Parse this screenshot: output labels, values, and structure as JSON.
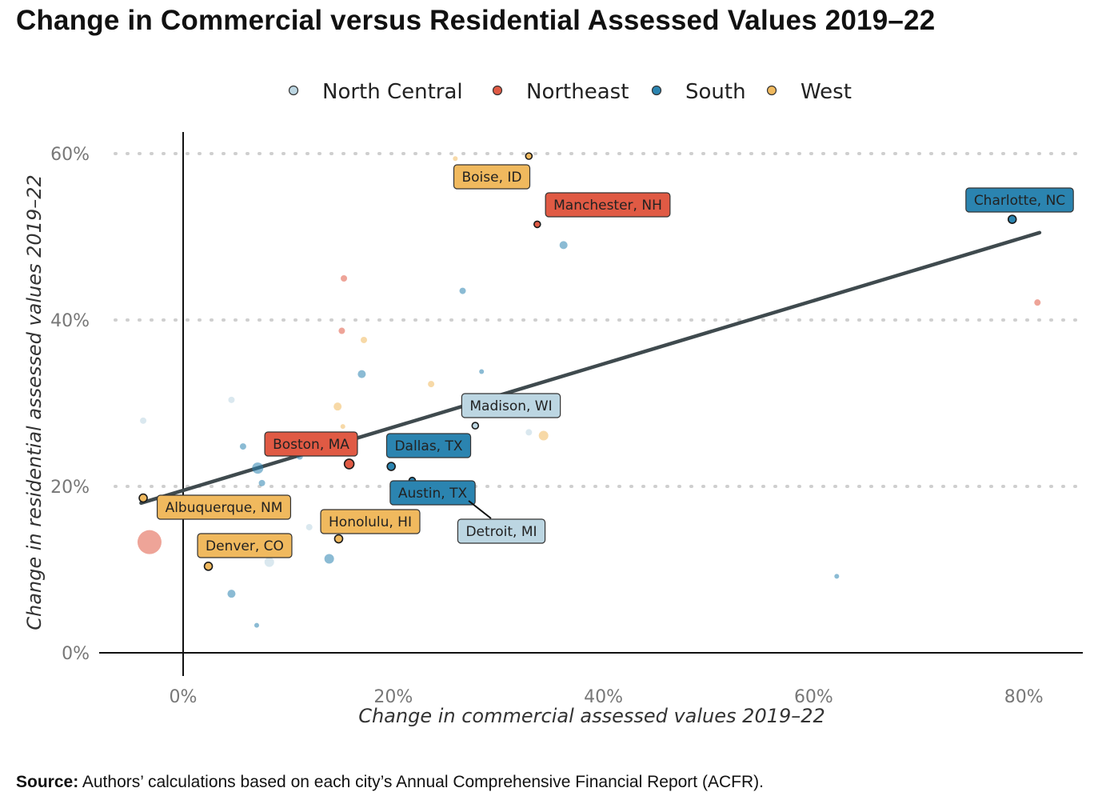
{
  "title": "Change in Commercial versus Residential Assessed Values 2019–22",
  "source": {
    "label": "Source:",
    "text": " Authors’ calculations based on each city’s Annual Comprehensive Financial Report (ACFR)."
  },
  "chart_data": {
    "type": "scatter",
    "xlabel": "Change in commercial assessed values 2019–22",
    "ylabel": "Change in residential assessed values 2019–22",
    "xlim": [
      -0.1,
      0.85
    ],
    "ylim": [
      -0.03,
      0.63
    ],
    "x_ticks": [
      {
        "value": 0.0,
        "label": "0%"
      },
      {
        "value": 0.2,
        "label": "20%"
      },
      {
        "value": 0.4,
        "label": "40%"
      },
      {
        "value": 0.6,
        "label": "60%"
      },
      {
        "value": 0.8,
        "label": "80%"
      }
    ],
    "y_ticks": [
      {
        "value": 0.0,
        "label": "0%"
      },
      {
        "value": 0.2,
        "label": "20%"
      },
      {
        "value": 0.4,
        "label": "40%"
      },
      {
        "value": 0.6,
        "label": "60%"
      }
    ],
    "grid": "horizontal dotted",
    "legend_position": "top",
    "series": [
      {
        "name": "North Central",
        "color": "#bcd6e2"
      },
      {
        "name": "Northeast",
        "color": "#e05a44"
      },
      {
        "name": "South",
        "color": "#2b84b0"
      },
      {
        "name": "West",
        "color": "#f0b95e"
      }
    ],
    "trend_line": {
      "x": [
        -0.04,
        0.815
      ],
      "y": [
        0.18,
        0.505
      ],
      "color": "#3f4a4e"
    },
    "points": [
      {
        "region": "West",
        "x": -0.038,
        "y": 0.186,
        "label": "Albuquerque, NM",
        "size": 5
      },
      {
        "region": "West",
        "x": 0.024,
        "y": 0.104,
        "label": "Denver, CO",
        "size": 5
      },
      {
        "region": "West",
        "x": 0.148,
        "y": 0.137,
        "label": "Honolulu, HI",
        "size": 5
      },
      {
        "region": "West",
        "x": 0.329,
        "y": 0.597,
        "label": "Boise, ID",
        "size": 4
      },
      {
        "region": "Northeast",
        "x": 0.158,
        "y": 0.227,
        "label": "Boston, MA",
        "size": 6
      },
      {
        "region": "Northeast",
        "x": 0.337,
        "y": 0.515,
        "label": "Manchester, NH",
        "size": 4
      },
      {
        "region": "South",
        "x": 0.198,
        "y": 0.224,
        "label": "Dallas, TX",
        "size": 5
      },
      {
        "region": "South",
        "x": 0.218,
        "y": 0.207,
        "label": "Austin, TX",
        "size": 4
      },
      {
        "region": "South",
        "x": 0.789,
        "y": 0.521,
        "label": "Charlotte, NC",
        "size": 5
      },
      {
        "region": "North Central",
        "x": 0.278,
        "y": 0.273,
        "label": "Madison, WI",
        "size": 4
      },
      {
        "region": "North Central",
        "x": 0.228,
        "y": 0.19,
        "label": "Detroit, MI",
        "size": 4
      },
      {
        "region": "Northeast",
        "x": -0.032,
        "y": 0.133,
        "size": 15
      },
      {
        "region": "Northeast",
        "x": 0.153,
        "y": 0.45,
        "size": 4
      },
      {
        "region": "Northeast",
        "x": 0.151,
        "y": 0.387,
        "size": 4
      },
      {
        "region": "Northeast",
        "x": 0.813,
        "y": 0.421,
        "size": 4
      },
      {
        "region": "West",
        "x": 0.172,
        "y": 0.376,
        "size": 4
      },
      {
        "region": "West",
        "x": 0.147,
        "y": 0.296,
        "size": 5
      },
      {
        "region": "West",
        "x": 0.152,
        "y": 0.272,
        "size": 3
      },
      {
        "region": "West",
        "x": 0.236,
        "y": 0.323,
        "size": 4
      },
      {
        "region": "West",
        "x": 0.343,
        "y": 0.261,
        "size": 6
      },
      {
        "region": "West",
        "x": 0.259,
        "y": 0.594,
        "size": 3
      },
      {
        "region": "South",
        "x": 0.17,
        "y": 0.335,
        "size": 5
      },
      {
        "region": "South",
        "x": 0.266,
        "y": 0.435,
        "size": 4
      },
      {
        "region": "South",
        "x": 0.362,
        "y": 0.49,
        "size": 5
      },
      {
        "region": "South",
        "x": 0.284,
        "y": 0.338,
        "size": 3
      },
      {
        "region": "South",
        "x": 0.057,
        "y": 0.248,
        "size": 4
      },
      {
        "region": "South",
        "x": 0.071,
        "y": 0.222,
        "size": 7
      },
      {
        "region": "South",
        "x": 0.075,
        "y": 0.204,
        "size": 4
      },
      {
        "region": "South",
        "x": 0.111,
        "y": 0.236,
        "size": 4
      },
      {
        "region": "South",
        "x": 0.139,
        "y": 0.113,
        "size": 6
      },
      {
        "region": "South",
        "x": 0.046,
        "y": 0.071,
        "size": 5
      },
      {
        "region": "South",
        "x": 0.07,
        "y": 0.033,
        "size": 3
      },
      {
        "region": "South",
        "x": 0.622,
        "y": 0.092,
        "size": 3
      },
      {
        "region": "North Central",
        "x": -0.038,
        "y": 0.279,
        "size": 4
      },
      {
        "region": "North Central",
        "x": 0.046,
        "y": 0.304,
        "size": 4
      },
      {
        "region": "North Central",
        "x": 0.12,
        "y": 0.151,
        "size": 4
      },
      {
        "region": "North Central",
        "x": 0.082,
        "y": 0.109,
        "size": 6
      },
      {
        "region": "North Central",
        "x": 0.329,
        "y": 0.265,
        "size": 4
      }
    ]
  }
}
